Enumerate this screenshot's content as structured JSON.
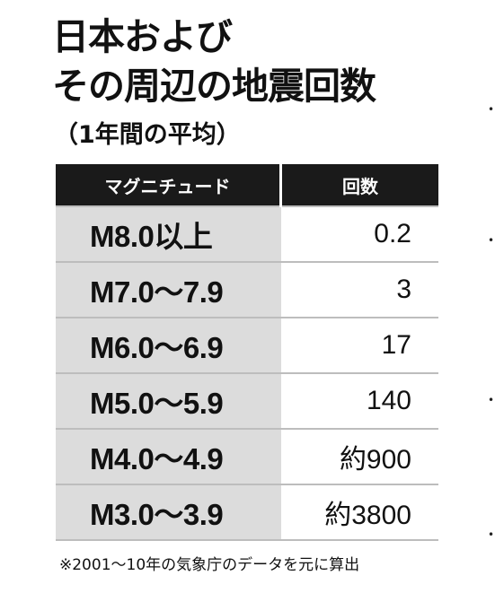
{
  "title": {
    "line1": "日本および",
    "line2": "その周辺の地震回数",
    "subtitle": "（1年間の平均）"
  },
  "table": {
    "headers": {
      "magnitude": "マグニチュード",
      "count": "回数"
    },
    "rows": [
      {
        "magnitude": "M8.0以上",
        "count": "0.2"
      },
      {
        "magnitude": "M7.0～7.9",
        "count": "3"
      },
      {
        "magnitude": "M6.0～6.9",
        "count": "17"
      },
      {
        "magnitude": "M5.0～5.9",
        "count": "140"
      },
      {
        "magnitude": "M4.0～4.9",
        "count": "約900"
      },
      {
        "magnitude": "M3.0～3.9",
        "count": "約3800"
      }
    ]
  },
  "footnote": "※2001～10年の気象庁のデータを元に算出",
  "colors": {
    "header_bg": "#1a1a1a",
    "magnitude_cell_bg": "#dcdcdc",
    "row_divider": "#bdbdbd"
  }
}
